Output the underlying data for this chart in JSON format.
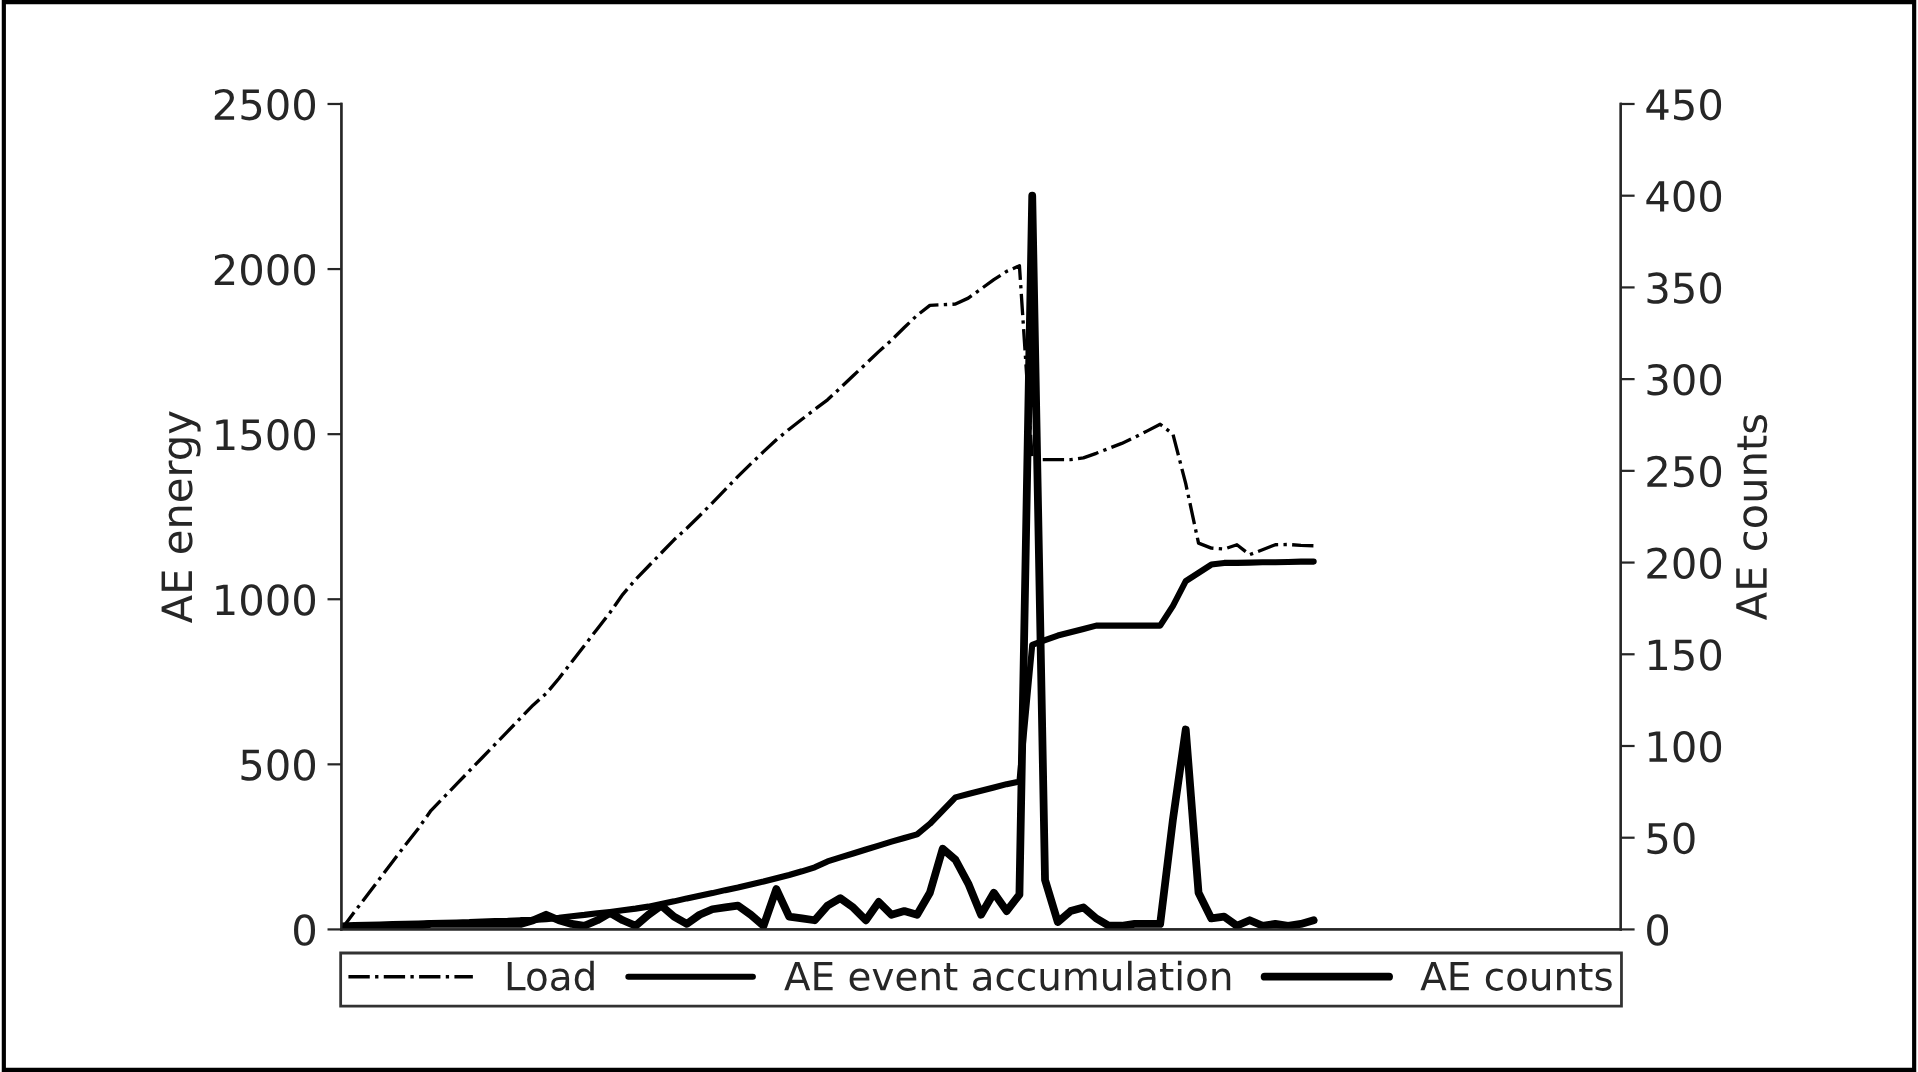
{
  "chart_data": {
    "type": "line",
    "ylabel": "AE energy",
    "y2label": "AE counts",
    "categories": [
      null,
      null,
      null,
      null,
      null,
      null,
      null,
      null,
      null,
      null,
      null,
      null,
      null,
      null,
      null,
      null,
      null,
      null,
      null,
      null,
      null,
      null,
      null,
      null,
      null,
      null,
      null,
      null,
      null,
      null,
      null,
      null,
      null,
      null,
      null,
      null,
      null,
      null,
      null,
      null,
      null,
      null,
      null,
      null,
      null,
      null,
      null,
      null,
      null,
      null,
      null,
      null,
      null,
      null,
      null,
      null,
      null,
      null,
      null,
      null,
      null,
      null,
      null,
      null,
      null,
      null,
      null,
      null,
      null,
      null,
      null,
      null,
      null,
      null,
      null,
      null,
      null,
      null,
      null,
      null,
      null,
      null,
      null,
      null,
      null,
      null,
      null,
      null,
      null,
      null,
      null,
      null,
      null,
      null,
      null,
      null,
      null,
      null,
      null,
      null,
      null
    ],
    "ylim": [
      0,
      2500
    ],
    "yticks": [
      0,
      500,
      1000,
      1500,
      2000,
      2500
    ],
    "y2lim": [
      0,
      450
    ],
    "y2ticks": [
      0,
      50,
      100,
      150,
      200,
      250,
      300,
      350,
      400,
      450
    ],
    "tick_labels": "y",
    "legend": "bottom",
    "series": [
      {
        "name": "Load",
        "color": "#000000",
        "line_style": "dashdot",
        "values": [
          0,
          52,
          103,
          154,
          205,
          256,
          305,
          360,
          400,
          440,
          480,
          520,
          560,
          600,
          640,
          680,
          714,
          760,
          810,
          860,
          910,
          960,
          1015,
          1060,
          1100,
          1140,
          1180,
          1215,
          1253,
          1292,
          1332,
          1372,
          1410,
          1447,
          1483,
          1515,
          1545,
          1575,
          1604,
          1640,
          1677,
          1713,
          1750,
          1785,
          1823,
          1860,
          1890,
          1892,
          1894,
          1912,
          1940,
          1968,
          1993,
          2010,
          1423,
          1423,
          1423,
          1423,
          1428,
          1442,
          1457,
          1472,
          1490,
          1510,
          1530,
          1500,
          1350,
          1170,
          1155,
          1152,
          1165,
          1135,
          1150,
          1165,
          1166,
          1163,
          1162,
          null,
          null,
          null,
          null,
          null,
          null,
          null,
          null,
          null,
          null,
          null,
          null,
          null,
          null,
          null,
          null,
          null,
          null,
          null,
          null,
          null,
          null,
          null,
          null
        ]
      },
      {
        "name": "AE event accumulation",
        "color": "#000000",
        "line_style": "solid",
        "values": [
          12,
          13,
          14,
          15,
          16,
          17,
          18,
          19,
          20,
          21,
          22,
          24,
          25,
          26,
          28,
          29,
          31,
          35,
          40,
          44,
          49,
          53,
          58,
          63,
          69,
          77,
          85,
          94,
          102,
          110,
          119,
          127,
          136,
          145,
          155,
          165,
          176,
          188,
          206,
          218,
          230,
          242,
          254,
          266,
          277,
          288,
          320,
          360,
          400,
          410,
          420,
          430,
          440,
          448,
          862,
          876,
          890,
          900,
          910,
          920,
          920,
          920,
          920,
          920,
          920,
          980,
          1055,
          1080,
          1105,
          1110,
          1110,
          1111,
          1112,
          1112,
          1113,
          1114,
          1114,
          null,
          null,
          null,
          null,
          null,
          null,
          null,
          null,
          null,
          null,
          null,
          null,
          null,
          null,
          null,
          null,
          null,
          null,
          null,
          null,
          null,
          null,
          null,
          null
        ]
      },
      {
        "name": "AE counts",
        "color": "#000000",
        "line_style": "solid",
        "axis": "y2",
        "values": [
          0,
          0,
          0,
          1,
          1,
          2,
          2,
          3,
          3,
          3,
          3,
          3,
          3,
          3,
          3,
          5,
          8,
          5,
          3,
          2,
          5,
          9,
          5,
          2,
          8,
          13,
          7,
          3,
          8,
          11,
          12,
          13,
          8,
          2,
          22,
          7,
          6,
          5,
          13,
          17,
          12,
          5,
          15,
          8,
          10,
          8,
          20,
          44,
          38,
          25,
          8,
          20,
          10,
          19,
          400,
          27,
          4,
          10,
          12,
          6,
          2,
          2,
          3,
          3,
          3,
          60,
          109,
          20,
          6,
          7,
          2,
          5,
          2,
          3,
          2,
          3,
          5,
          null,
          null,
          null,
          null,
          null,
          null,
          null,
          null,
          null,
          null,
          null,
          null,
          null,
          null,
          null,
          null,
          null,
          null,
          null,
          null,
          null,
          null,
          null,
          null
        ]
      }
    ]
  }
}
